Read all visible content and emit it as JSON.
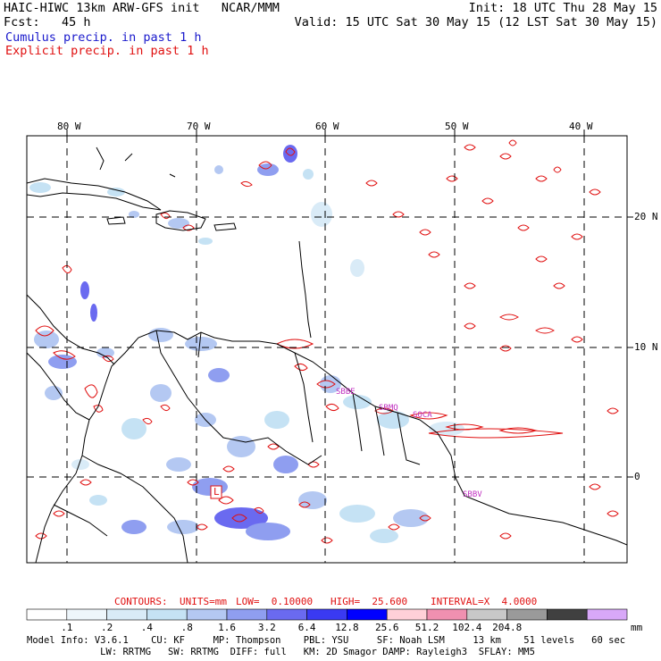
{
  "header": {
    "left_line1": "HAIC-HIWC 13km ARW-GFS init   NCAR/MMM",
    "left_line2": "Fcst:   45 h",
    "right_line1": "Init: 18 UTC Thu 28 May 15",
    "right_line2": "Valid: 15 UTC Sat 30 May 15 (12 LST Sat 30 May 15)",
    "legend_cumulus": "Cumulus precip. in past 1 h",
    "legend_explicit": "Explicit precip. in past 1 h"
  },
  "map": {
    "lon_labels": [
      "80 W",
      "70 W",
      "60 W",
      "50 W",
      "40 W"
    ],
    "lat_labels": [
      "20 N",
      "10 N",
      "0"
    ],
    "low_marker": "L",
    "place_labels": [
      "SBBE",
      "SBMQ",
      "SOCA",
      "SBBV"
    ]
  },
  "contours": {
    "label": "CONTOURS:",
    "units": "UNITS=mm",
    "low": "LOW=  0.10000",
    "high": "HIGH=  25.600",
    "interval": "INTERVAL=X  4.0000"
  },
  "colorbar": {
    "ticks": [
      ".1",
      ".2",
      ".4",
      ".8",
      "1.6",
      "3.2",
      "6.4",
      "12.8",
      "25.6",
      "51.2",
      "102.4",
      "204.8"
    ],
    "unit": "mm",
    "colors": [
      "#ffffff",
      "#eef6fb",
      "#d9ebf7",
      "#c5e2f4",
      "#b4c8f2",
      "#8f9ef0",
      "#6a6af0",
      "#3a3af2",
      "#0000ff",
      "#ffd0d8",
      "#f090b0",
      "#c8c8c8",
      "#9a9a9a",
      "#404040",
      "#d8a8f8"
    ]
  },
  "model_info": {
    "line1": "Model Info: V3.6.1    CU: KF     MP: Thompson    PBL: YSU     SF: Noah LSM     13 km    51 levels   60 sec",
    "line2": "             LW: RRTMG   SW: RRTMG  DIFF: full   KM: 2D Smagor DAMP: Rayleigh3  SFLAY: MM5"
  }
}
